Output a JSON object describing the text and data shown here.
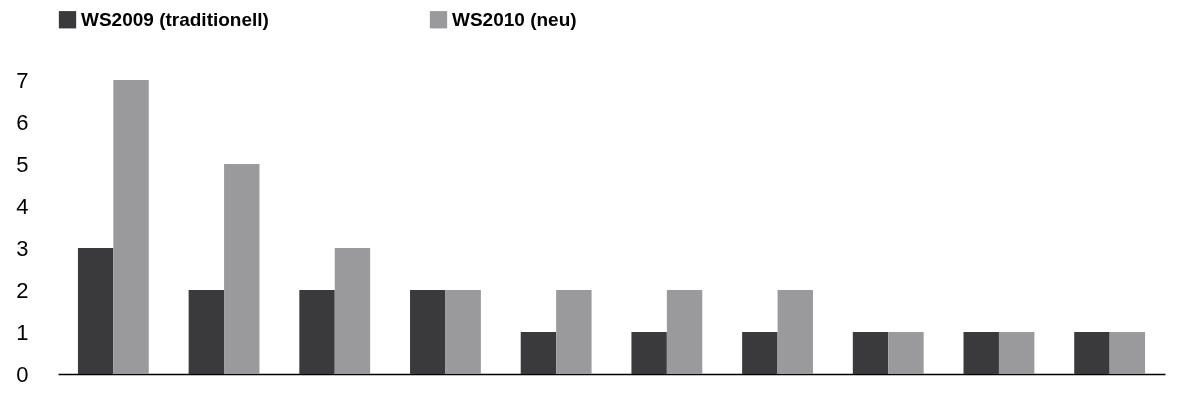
{
  "chart_data": {
    "type": "bar",
    "categories": [
      null,
      null,
      null,
      null,
      null,
      null,
      null,
      null,
      null,
      null
    ],
    "series": [
      {
        "name": "WS2009 (traditionell)",
        "color": "#3a3a3c",
        "values": [
          3,
          2,
          2,
          2,
          1,
          1,
          1,
          1,
          1,
          1
        ]
      },
      {
        "name": "WS2010 (neu)",
        "color": "#9a9a9c",
        "values": [
          7,
          5,
          3,
          2,
          2,
          2,
          2,
          1,
          1,
          1
        ]
      }
    ],
    "ylim": [
      0,
      7
    ],
    "yticks": [
      0,
      1,
      2,
      3,
      4,
      5,
      6,
      7
    ],
    "legend": "top"
  }
}
